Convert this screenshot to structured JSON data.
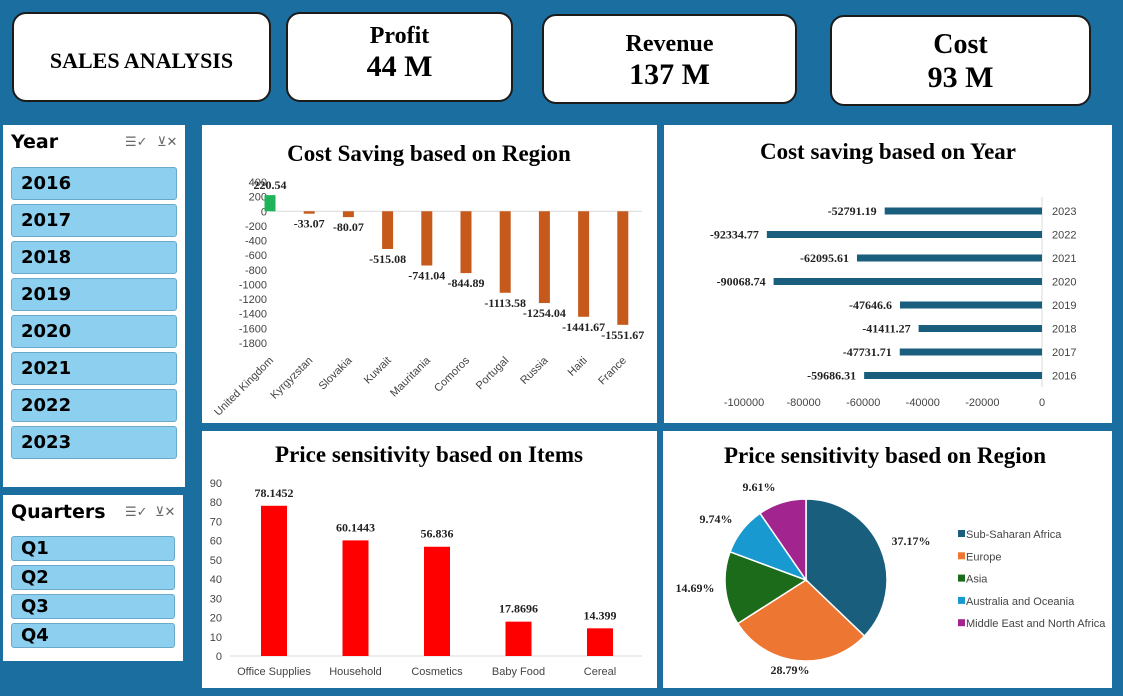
{
  "header": {
    "title": "SALES ANALYSIS"
  },
  "kpis": [
    {
      "label": "Profit",
      "value": "44 M"
    },
    {
      "label": "Revenue",
      "value": "137 M"
    },
    {
      "label": "Cost",
      "value": "93 M"
    }
  ],
  "slicers": {
    "year": {
      "title": "Year",
      "items": [
        "2016",
        "2017",
        "2018",
        "2019",
        "2020",
        "2021",
        "2022",
        "2023"
      ]
    },
    "quarters": {
      "title": "Quarters",
      "items": [
        "Q1",
        "Q2",
        "Q3",
        "Q4"
      ]
    }
  },
  "chart_data": [
    {
      "id": "region_cost_saving",
      "type": "bar",
      "title": "Cost Saving  based on Region",
      "categories": [
        "United Kingdom",
        "Kyrgyzstan",
        "Slovakia",
        "Kuwait",
        "Mauritania",
        "Comoros",
        "Portugal",
        "Russia",
        "Haiti",
        "France"
      ],
      "values": [
        220.54,
        -33.07,
        -80.07,
        -515.08,
        -741.04,
        -844.89,
        -1113.58,
        -1254.04,
        -1441.67,
        -1551.67
      ],
      "labels": [
        "220.54",
        "-33.07",
        "-80.07",
        "-515.08",
        "-741.04",
        "-844.89",
        "-1113.58",
        "-1254.04",
        "-1441.67",
        "-1551.67"
      ],
      "yticks": [
        "400",
        "200",
        "0",
        "-200",
        "-400",
        "-600",
        "-800",
        "-1000",
        "-1200",
        "-1400",
        "-1600",
        "-1800"
      ],
      "ylim": [
        -1800,
        400
      ],
      "colors": {
        "positive": "#1fb35a",
        "negative": "#c55a1c"
      }
    },
    {
      "id": "year_cost_saving",
      "type": "bar",
      "orientation": "horizontal",
      "title": "Cost saving based on Year",
      "categories": [
        "2023",
        "2022",
        "2021",
        "2020",
        "2019",
        "2018",
        "2017",
        "2016"
      ],
      "values": [
        -52791.19,
        -92334.77,
        -62095.61,
        -90068.74,
        -47646.6,
        -41411.27,
        -47731.71,
        -59686.31
      ],
      "labels": [
        "-52791.19",
        "-92334.77",
        "-62095.61",
        "-90068.74",
        "-47646.6",
        "-41411.27",
        "-47731.71",
        "-59686.31"
      ],
      "xticks": [
        "-100000",
        "-80000",
        "-60000",
        "-40000",
        "-20000",
        "0"
      ],
      "xlim": [
        -100000,
        0
      ],
      "color": "#1a5e7e"
    },
    {
      "id": "item_price_sensitivity",
      "type": "bar",
      "title": "Price sensitivity based on Items",
      "categories": [
        "Office Supplies",
        "Household",
        "Cosmetics",
        "Baby Food",
        "Cereal"
      ],
      "values": [
        78.1452,
        60.1443,
        56.836,
        17.8696,
        14.399
      ],
      "labels": [
        "78.1452",
        "60.1443",
        "56.836",
        "17.8696",
        "14.399"
      ],
      "yticks": [
        "90",
        "80",
        "70",
        "60",
        "50",
        "40",
        "30",
        "20",
        "10",
        "0"
      ],
      "ylim": [
        0,
        90
      ],
      "color": "#ff0000"
    },
    {
      "id": "region_price_sensitivity",
      "type": "pie",
      "title": "Price sensitivity based on Region",
      "categories": [
        "Sub-Saharan Africa",
        "Europe",
        "Asia",
        "Australia and Oceania",
        "Middle East and North Africa"
      ],
      "values": [
        37.17,
        28.79,
        14.69,
        9.74,
        9.61
      ],
      "labels": [
        "37.17%",
        "28.79%",
        "14.69%",
        "9.74%",
        "9.61%"
      ],
      "colors": [
        "#1a5e7e",
        "#ec7632",
        "#1b6b1b",
        "#1899d0",
        "#a2258f"
      ],
      "legend": "right"
    }
  ]
}
